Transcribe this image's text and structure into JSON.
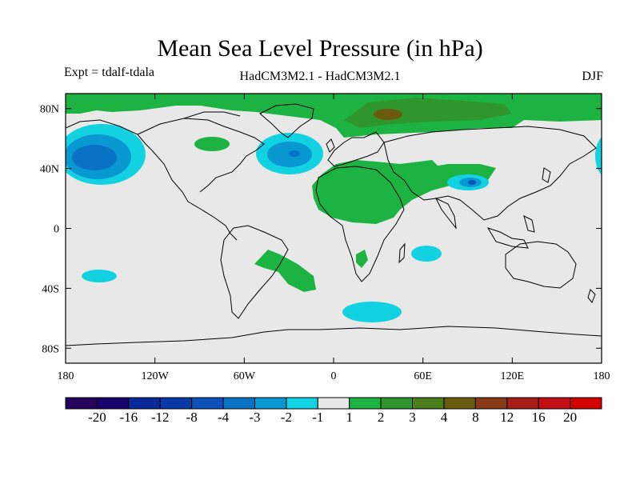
{
  "header": {
    "title": "Mean Sea Level Pressure (in hPa)",
    "experiment": "Expt = tdalf-tdala",
    "model_diff": "HadCM3M2.1 - HadCM3M2.1",
    "season": "DJF"
  },
  "map": {
    "lon_range": [
      -180,
      180
    ],
    "lat_range": [
      -90,
      90
    ],
    "lat_ticks": [
      {
        "v": 80,
        "label": "80N"
      },
      {
        "v": 40,
        "label": "40N"
      },
      {
        "v": 0,
        "label": "0"
      },
      {
        "v": -40,
        "label": "40S"
      },
      {
        "v": -80,
        "label": "80S"
      }
    ],
    "lon_ticks": [
      {
        "v": -180,
        "label": "180"
      },
      {
        "v": -120,
        "label": "120W"
      },
      {
        "v": -60,
        "label": "60W"
      },
      {
        "v": 0,
        "label": "0"
      },
      {
        "v": 60,
        "label": "60E"
      },
      {
        "v": 120,
        "label": "120E"
      },
      {
        "v": 180,
        "label": "180"
      }
    ],
    "background_color": "#e8e8e8"
  },
  "colorbar": {
    "colors": [
      "#24005c",
      "#16006e",
      "#0a2a9a",
      "#0838a8",
      "#0a52b8",
      "#0a72c4",
      "#0a98d2",
      "#12d2e2",
      "#e8e8e8",
      "#1db342",
      "#2f962e",
      "#4b7d1c",
      "#6a5a10",
      "#8a3a14",
      "#a61c18",
      "#c20e14",
      "#d20000"
    ],
    "labels": [
      "-20",
      "-16",
      "-12",
      "-8",
      "-4",
      "-3",
      "-2",
      "-1",
      "1",
      "2",
      "3",
      "4",
      "8",
      "12",
      "16",
      "20"
    ]
  },
  "legend_colors": {
    "blue_dark": "#0a52b8",
    "blue_mid": "#0a98d2",
    "cyan": "#12d2e2",
    "green": "#1db342",
    "green_dark": "#2f962e",
    "brown": "#6a5a10"
  }
}
